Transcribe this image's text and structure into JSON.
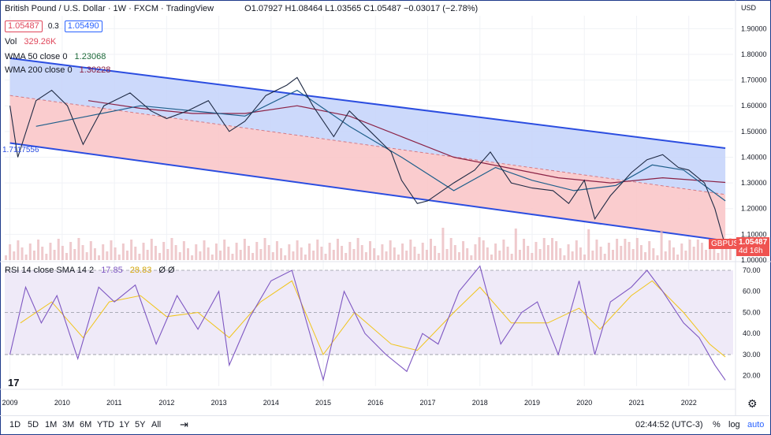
{
  "header": {
    "symbol_title": "British Pound / U.S. Dollar · 1W · FXCM · TradingView",
    "ohlc": "O1.07927 H1.08464 L1.03565 C1.05487 −0.03017 (−2.78%)",
    "sell_price": "1.05487",
    "spread": "0.3",
    "buy_price": "1.05490",
    "currency": "USD"
  },
  "indicators": {
    "vol_label": "Vol",
    "vol_value": "329.26K",
    "wma50_label": "WMA 50 close 0",
    "wma50_value": "1.23068",
    "wma200_label": "WMA 200 close 0",
    "wma200_value": "1.30228",
    "rsi_label": "RSI 14 close SMA 14 2",
    "rsi_value": "17.85",
    "rsi_sma_value": "28.83",
    "rsi_extra": "Ø Ø",
    "channel_label": "1.7117556"
  },
  "price_badge": {
    "symbol": "GBPUSD",
    "value": "1.05487",
    "countdown": "4d 16h"
  },
  "toolbar": {
    "ranges": [
      "1D",
      "5D",
      "1M",
      "3M",
      "6M",
      "YTD",
      "1Y",
      "5Y",
      "All"
    ],
    "time": "02:44:52 (UTC-3)",
    "percent": "%",
    "log": "log",
    "auto": "auto"
  },
  "chart_data": {
    "type": "line",
    "title": "British Pound / U.S. Dollar",
    "x_ticks": [
      "2009",
      "2010",
      "2011",
      "2012",
      "2013",
      "2014",
      "2015",
      "2016",
      "2017",
      "2018",
      "2019",
      "2020",
      "2021",
      "2022"
    ],
    "price_ticks": [
      "1.90000",
      "1.80000",
      "1.70000",
      "1.60000",
      "1.50000",
      "1.40000",
      "1.30000",
      "1.20000",
      "1.10000",
      "1.00000"
    ],
    "rsi_ticks": [
      "70.00",
      "60.00",
      "50.00",
      "40.00",
      "30.00",
      "20.00"
    ],
    "price_ylim": [
      1.0,
      1.95
    ],
    "rsi_ylim": [
      15,
      73
    ],
    "price_series": [
      {
        "x": 2009.0,
        "y": 1.6
      },
      {
        "x": 2009.15,
        "y": 1.4
      },
      {
        "x": 2009.5,
        "y": 1.62
      },
      {
        "x": 2009.8,
        "y": 1.66
      },
      {
        "x": 2010.1,
        "y": 1.6
      },
      {
        "x": 2010.4,
        "y": 1.45
      },
      {
        "x": 2010.8,
        "y": 1.6
      },
      {
        "x": 2011.3,
        "y": 1.65
      },
      {
        "x": 2011.7,
        "y": 1.58
      },
      {
        "x": 2012.0,
        "y": 1.55
      },
      {
        "x": 2012.4,
        "y": 1.58
      },
      {
        "x": 2012.8,
        "y": 1.62
      },
      {
        "x": 2013.2,
        "y": 1.5
      },
      {
        "x": 2013.5,
        "y": 1.54
      },
      {
        "x": 2013.9,
        "y": 1.64
      },
      {
        "x": 2014.3,
        "y": 1.68
      },
      {
        "x": 2014.5,
        "y": 1.71
      },
      {
        "x": 2014.8,
        "y": 1.6
      },
      {
        "x": 2015.2,
        "y": 1.48
      },
      {
        "x": 2015.5,
        "y": 1.58
      },
      {
        "x": 2015.9,
        "y": 1.5
      },
      {
        "x": 2016.3,
        "y": 1.42
      },
      {
        "x": 2016.5,
        "y": 1.31
      },
      {
        "x": 2016.8,
        "y": 1.22
      },
      {
        "x": 2017.0,
        "y": 1.23
      },
      {
        "x": 2017.5,
        "y": 1.3
      },
      {
        "x": 2017.9,
        "y": 1.35
      },
      {
        "x": 2018.2,
        "y": 1.42
      },
      {
        "x": 2018.6,
        "y": 1.3
      },
      {
        "x": 2019.0,
        "y": 1.28
      },
      {
        "x": 2019.4,
        "y": 1.27
      },
      {
        "x": 2019.7,
        "y": 1.22
      },
      {
        "x": 2020.0,
        "y": 1.31
      },
      {
        "x": 2020.2,
        "y": 1.16
      },
      {
        "x": 2020.5,
        "y": 1.25
      },
      {
        "x": 2020.9,
        "y": 1.34
      },
      {
        "x": 2021.2,
        "y": 1.39
      },
      {
        "x": 2021.5,
        "y": 1.41
      },
      {
        "x": 2021.8,
        "y": 1.36
      },
      {
        "x": 2022.0,
        "y": 1.35
      },
      {
        "x": 2022.3,
        "y": 1.3
      },
      {
        "x": 2022.5,
        "y": 1.2
      },
      {
        "x": 2022.7,
        "y": 1.055
      }
    ],
    "wma50_series": [
      {
        "x": 2009.5,
        "y": 1.52
      },
      {
        "x": 2010.5,
        "y": 1.56
      },
      {
        "x": 2011.5,
        "y": 1.6
      },
      {
        "x": 2012.5,
        "y": 1.58
      },
      {
        "x": 2013.5,
        "y": 1.56
      },
      {
        "x": 2014.5,
        "y": 1.66
      },
      {
        "x": 2015.5,
        "y": 1.52
      },
      {
        "x": 2016.5,
        "y": 1.4
      },
      {
        "x": 2017.5,
        "y": 1.27
      },
      {
        "x": 2018.3,
        "y": 1.36
      },
      {
        "x": 2019.0,
        "y": 1.31
      },
      {
        "x": 2019.8,
        "y": 1.27
      },
      {
        "x": 2020.6,
        "y": 1.29
      },
      {
        "x": 2021.3,
        "y": 1.37
      },
      {
        "x": 2021.9,
        "y": 1.35
      },
      {
        "x": 2022.7,
        "y": 1.23
      }
    ],
    "wma200_series": [
      {
        "x": 2010.5,
        "y": 1.62
      },
      {
        "x": 2011.5,
        "y": 1.59
      },
      {
        "x": 2012.5,
        "y": 1.57
      },
      {
        "x": 2013.5,
        "y": 1.57
      },
      {
        "x": 2014.5,
        "y": 1.6
      },
      {
        "x": 2015.5,
        "y": 1.56
      },
      {
        "x": 2016.5,
        "y": 1.48
      },
      {
        "x": 2017.5,
        "y": 1.4
      },
      {
        "x": 2018.5,
        "y": 1.36
      },
      {
        "x": 2019.5,
        "y": 1.32
      },
      {
        "x": 2020.5,
        "y": 1.3
      },
      {
        "x": 2021.5,
        "y": 1.32
      },
      {
        "x": 2022.7,
        "y": 1.302
      }
    ],
    "rsi_series": [
      {
        "x": 2009.0,
        "y": 30
      },
      {
        "x": 2009.3,
        "y": 62
      },
      {
        "x": 2009.6,
        "y": 45
      },
      {
        "x": 2009.9,
        "y": 58
      },
      {
        "x": 2010.3,
        "y": 28
      },
      {
        "x": 2010.7,
        "y": 62
      },
      {
        "x": 2011.0,
        "y": 55
      },
      {
        "x": 2011.4,
        "y": 63
      },
      {
        "x": 2011.8,
        "y": 35
      },
      {
        "x": 2012.2,
        "y": 58
      },
      {
        "x": 2012.6,
        "y": 42
      },
      {
        "x": 2013.0,
        "y": 60
      },
      {
        "x": 2013.2,
        "y": 25
      },
      {
        "x": 2013.6,
        "y": 48
      },
      {
        "x": 2014.0,
        "y": 65
      },
      {
        "x": 2014.4,
        "y": 70
      },
      {
        "x": 2014.8,
        "y": 35
      },
      {
        "x": 2015.0,
        "y": 18
      },
      {
        "x": 2015.4,
        "y": 60
      },
      {
        "x": 2015.8,
        "y": 40
      },
      {
        "x": 2016.2,
        "y": 30
      },
      {
        "x": 2016.6,
        "y": 22
      },
      {
        "x": 2016.9,
        "y": 40
      },
      {
        "x": 2017.2,
        "y": 35
      },
      {
        "x": 2017.6,
        "y": 60
      },
      {
        "x": 2018.0,
        "y": 72
      },
      {
        "x": 2018.4,
        "y": 35
      },
      {
        "x": 2018.8,
        "y": 50
      },
      {
        "x": 2019.1,
        "y": 55
      },
      {
        "x": 2019.5,
        "y": 30
      },
      {
        "x": 2019.9,
        "y": 65
      },
      {
        "x": 2020.2,
        "y": 30
      },
      {
        "x": 2020.5,
        "y": 55
      },
      {
        "x": 2020.9,
        "y": 62
      },
      {
        "x": 2021.2,
        "y": 70
      },
      {
        "x": 2021.5,
        "y": 60
      },
      {
        "x": 2021.9,
        "y": 45
      },
      {
        "x": 2022.2,
        "y": 38
      },
      {
        "x": 2022.5,
        "y": 25
      },
      {
        "x": 2022.7,
        "y": 17.85
      }
    ],
    "rsi_sma_series": [
      {
        "x": 2009.2,
        "y": 45
      },
      {
        "x": 2009.8,
        "y": 55
      },
      {
        "x": 2010.4,
        "y": 38
      },
      {
        "x": 2010.9,
        "y": 55
      },
      {
        "x": 2011.5,
        "y": 58
      },
      {
        "x": 2012.0,
        "y": 48
      },
      {
        "x": 2012.6,
        "y": 50
      },
      {
        "x": 2013.2,
        "y": 38
      },
      {
        "x": 2013.8,
        "y": 55
      },
      {
        "x": 2014.4,
        "y": 65
      },
      {
        "x": 2015.0,
        "y": 30
      },
      {
        "x": 2015.6,
        "y": 50
      },
      {
        "x": 2016.3,
        "y": 35
      },
      {
        "x": 2016.8,
        "y": 32
      },
      {
        "x": 2017.5,
        "y": 50
      },
      {
        "x": 2018.0,
        "y": 62
      },
      {
        "x": 2018.6,
        "y": 45
      },
      {
        "x": 2019.3,
        "y": 45
      },
      {
        "x": 2019.9,
        "y": 52
      },
      {
        "x": 2020.3,
        "y": 42
      },
      {
        "x": 2020.9,
        "y": 58
      },
      {
        "x": 2021.3,
        "y": 65
      },
      {
        "x": 2021.9,
        "y": 50
      },
      {
        "x": 2022.4,
        "y": 35
      },
      {
        "x": 2022.7,
        "y": 28.83
      }
    ],
    "channel_upper": [
      {
        "x": 2009.0,
        "y": 1.785
      },
      {
        "x": 2022.7,
        "y": 1.435
      }
    ],
    "channel_mid": [
      {
        "x": 2009.0,
        "y": 1.64
      },
      {
        "x": 2022.7,
        "y": 1.255
      }
    ],
    "channel_lower": [
      {
        "x": 2009.0,
        "y": 1.455
      },
      {
        "x": 2022.7,
        "y": 1.075
      }
    ]
  },
  "colors": {
    "channel_upper_fill": "#c7d5fb",
    "channel_lower_fill": "#f9c6c9",
    "channel_line": "#2b4de0",
    "price_line": "#1f2a44",
    "wma50": "#1f5f8b",
    "wma200": "#8b2245",
    "rsi": "#7e57c2",
    "rsi_sma": "#f0c419",
    "rsi_bg": "#efeaf8",
    "badge_red": "#ef5350",
    "volume": "#e8b4b8"
  }
}
